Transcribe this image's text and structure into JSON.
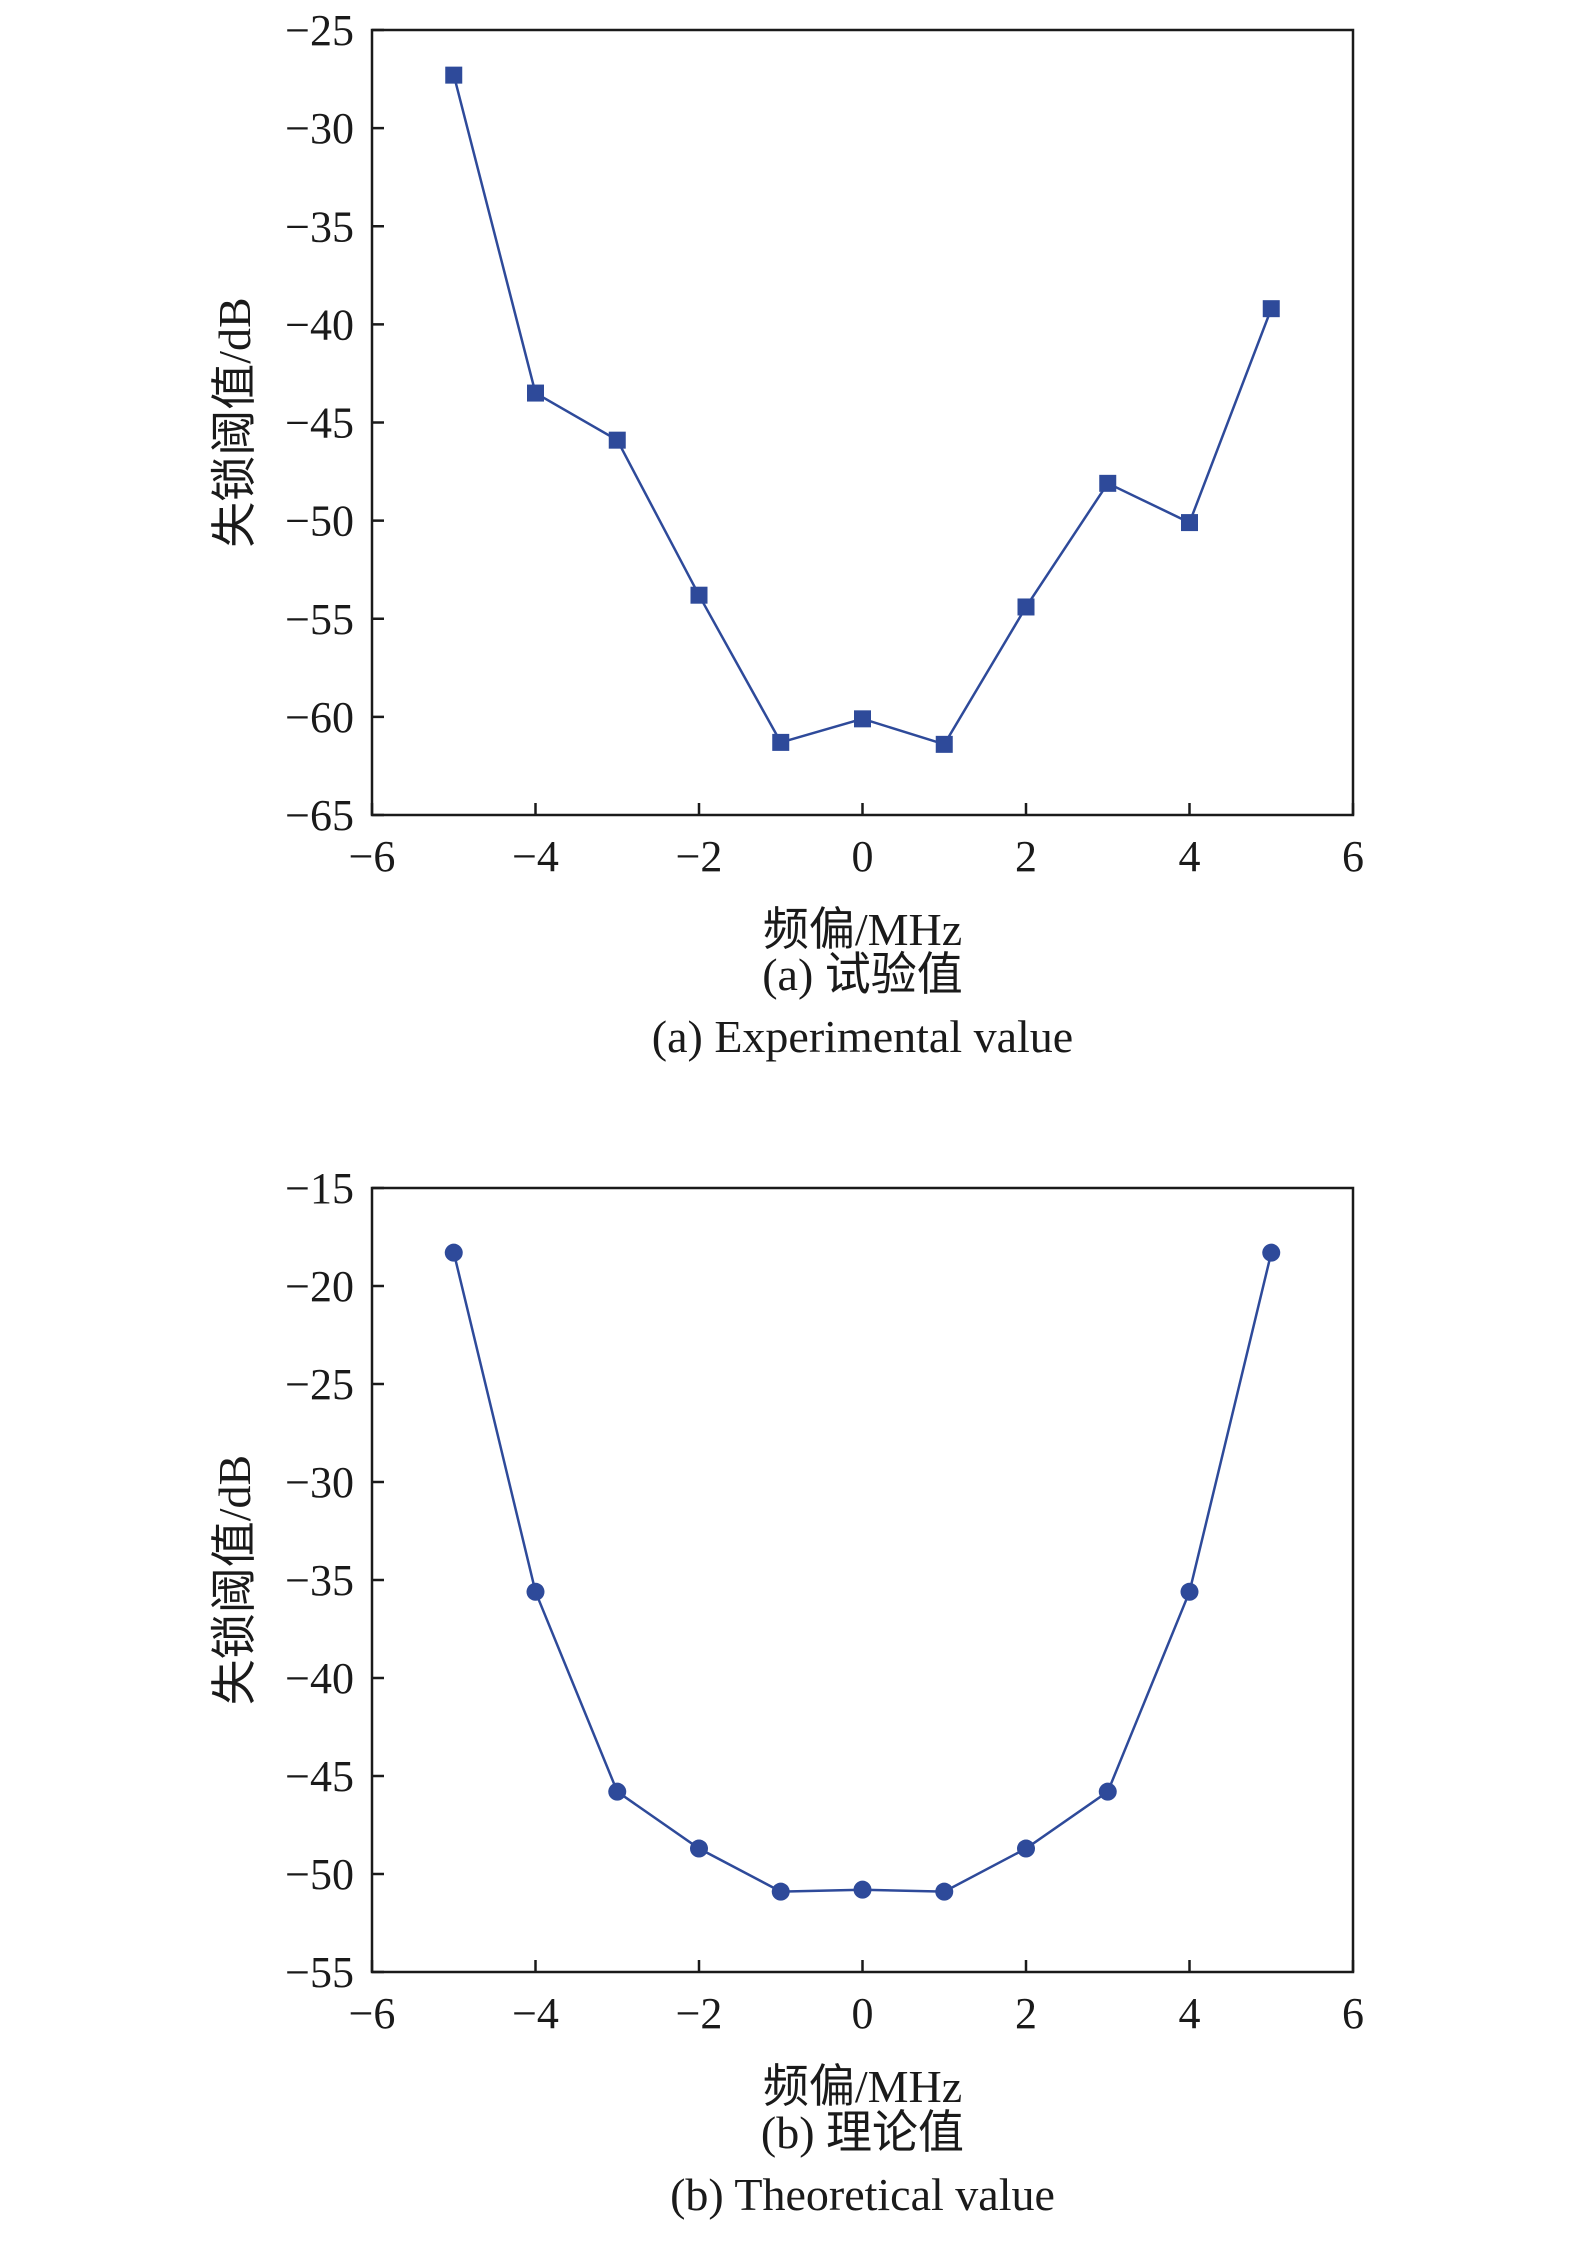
{
  "chart_data": [
    {
      "type": "line",
      "marker": "square",
      "xlabel": "频偏/MHz",
      "ylabel": "失锁阈值/dB",
      "xlim": [
        -6,
        6
      ],
      "ylim": [
        -65,
        -25
      ],
      "xticks": [
        "−6",
        "−4",
        "−2",
        "0",
        "2",
        "4",
        "6"
      ],
      "yticks": [
        "−65",
        "−60",
        "−55",
        "−50",
        "−45",
        "−40",
        "−35",
        "−30",
        "−25"
      ],
      "x": [
        -5,
        -4,
        -3,
        -2,
        -1,
        0,
        1,
        2,
        3,
        4,
        5
      ],
      "series": [
        {
          "values": [
            -27.3,
            -43.5,
            -45.9,
            -53.8,
            -61.3,
            -60.1,
            -61.4,
            -54.4,
            -48.1,
            -50.1,
            -39.2
          ]
        }
      ],
      "caption_cn": "(a) 试验值",
      "caption_en": "(a) Experimental value",
      "grid": false,
      "color": "#2e4a9a"
    },
    {
      "type": "line",
      "marker": "circle",
      "xlabel": "频偏/MHz",
      "ylabel": "失锁阈值/dB",
      "xlim": [
        -6,
        6
      ],
      "ylim": [
        -55,
        -15
      ],
      "xticks": [
        "−6",
        "−4",
        "−2",
        "0",
        "2",
        "4",
        "6"
      ],
      "yticks": [
        "−55",
        "−50",
        "−45",
        "−40",
        "−35",
        "−30",
        "−25",
        "−20",
        "−15"
      ],
      "x": [
        -5,
        -4,
        -3,
        -2,
        -1,
        0,
        1,
        2,
        3,
        4,
        5
      ],
      "series": [
        {
          "values": [
            -18.3,
            -35.6,
            -45.8,
            -48.7,
            -50.9,
            -50.8,
            -50.9,
            -48.7,
            -45.8,
            -35.6,
            -18.3
          ]
        }
      ],
      "caption_cn": "(b) 理论值",
      "caption_en": "(b) Theoretical value",
      "grid": false,
      "color": "#2e4a9a"
    }
  ]
}
